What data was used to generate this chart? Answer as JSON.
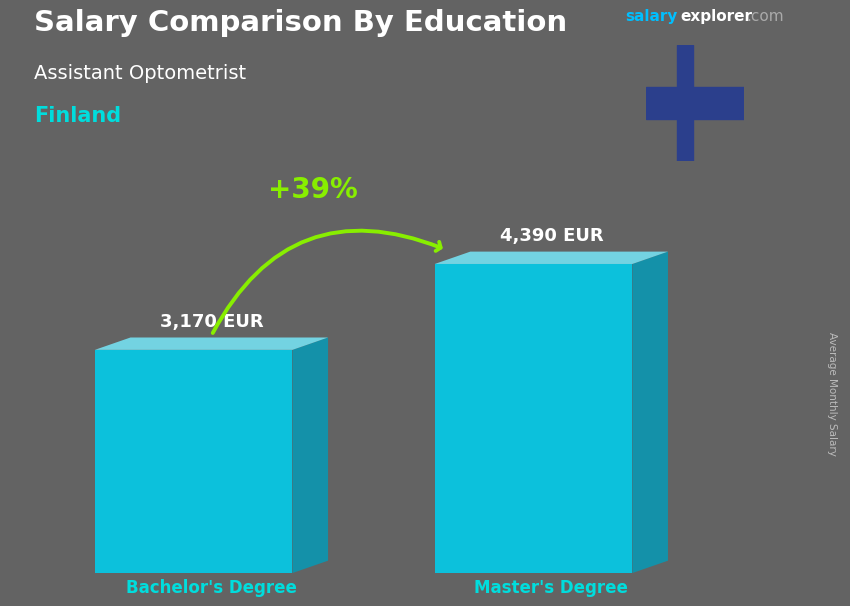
{
  "title": "Salary Comparison By Education",
  "subtitle": "Assistant Optometrist",
  "country": "Finland",
  "categories": [
    "Bachelor's Degree",
    "Master's Degree"
  ],
  "values": [
    3170,
    4390
  ],
  "value_labels": [
    "3,170 EUR",
    "4,390 EUR"
  ],
  "pct_change": "+39%",
  "c_front": "#00CFEE",
  "c_top": "#75DDEE",
  "c_side": "#009DBB",
  "bg_color": "#636363",
  "title_color": "#FFFFFF",
  "subtitle_color": "#FFFFFF",
  "country_color": "#00DDDD",
  "label_color_bachelor": "#FFFFFF",
  "label_color_master": "#FFFFFF",
  "xlabel_color": "#00DDDD",
  "site_salary_color": "#00BFFF",
  "site_explorer_color": "#FFFFFF",
  "site_com_color": "#AAAAAA",
  "pct_color": "#88EE00",
  "arrow_color": "#88EE00",
  "ylabel_text": "Average Monthly Salary",
  "ylabel_color": "#BBBBBB",
  "flag_bg": "#FFFFFF",
  "flag_cross": "#2B3F8C",
  "figsize": [
    8.5,
    6.06
  ],
  "dpi": 100
}
